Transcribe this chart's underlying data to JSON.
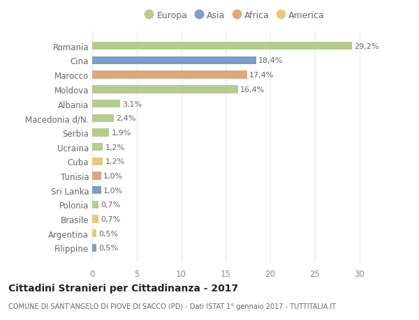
{
  "categories": [
    "Filippine",
    "Argentina",
    "Brasile",
    "Polonia",
    "Sri Lanka",
    "Tunisia",
    "Cuba",
    "Ucraina",
    "Serbia",
    "Macedonia d/N.",
    "Albania",
    "Moldova",
    "Marocco",
    "Cina",
    "Romania"
  ],
  "values": [
    0.5,
    0.5,
    0.7,
    0.7,
    1.0,
    1.0,
    1.2,
    1.2,
    1.9,
    2.4,
    3.1,
    16.4,
    17.4,
    18.4,
    29.2
  ],
  "labels": [
    "0,5%",
    "0,5%",
    "0,7%",
    "0,7%",
    "1,0%",
    "1,0%",
    "1,2%",
    "1,2%",
    "1,9%",
    "2,4%",
    "3,1%",
    "16,4%",
    "17,4%",
    "18,4%",
    "29,2%"
  ],
  "colors": [
    "#7b9dc7",
    "#e8c97a",
    "#e8c97a",
    "#b5cc8e",
    "#7b9dc7",
    "#dba882",
    "#e8c97a",
    "#b5cc8e",
    "#b5cc8e",
    "#b5cc8e",
    "#b5cc8e",
    "#b5cc8e",
    "#dba882",
    "#7b9dc7",
    "#b5cc8e"
  ],
  "legend_labels": [
    "Europa",
    "Asia",
    "Africa",
    "America"
  ],
  "legend_colors": [
    "#b5cc8e",
    "#7b9dc7",
    "#dba882",
    "#e8c97a"
  ],
  "title": "Cittadini Stranieri per Cittadinanza - 2017",
  "subtitle": "COMUNE DI SANT'ANGELO DI PIOVE DI SACCO (PD) - Dati ISTAT 1° gennaio 2017 - TUTTITALIA.IT",
  "xlim": [
    0,
    32
  ],
  "xticks": [
    0,
    5,
    10,
    15,
    20,
    25,
    30
  ],
  "background_color": "#ffffff",
  "grid_color": "#e8e8e8",
  "bar_height": 0.55,
  "label_fontsize": 8,
  "tick_fontsize": 8.5,
  "title_fontsize": 10,
  "subtitle_fontsize": 7
}
